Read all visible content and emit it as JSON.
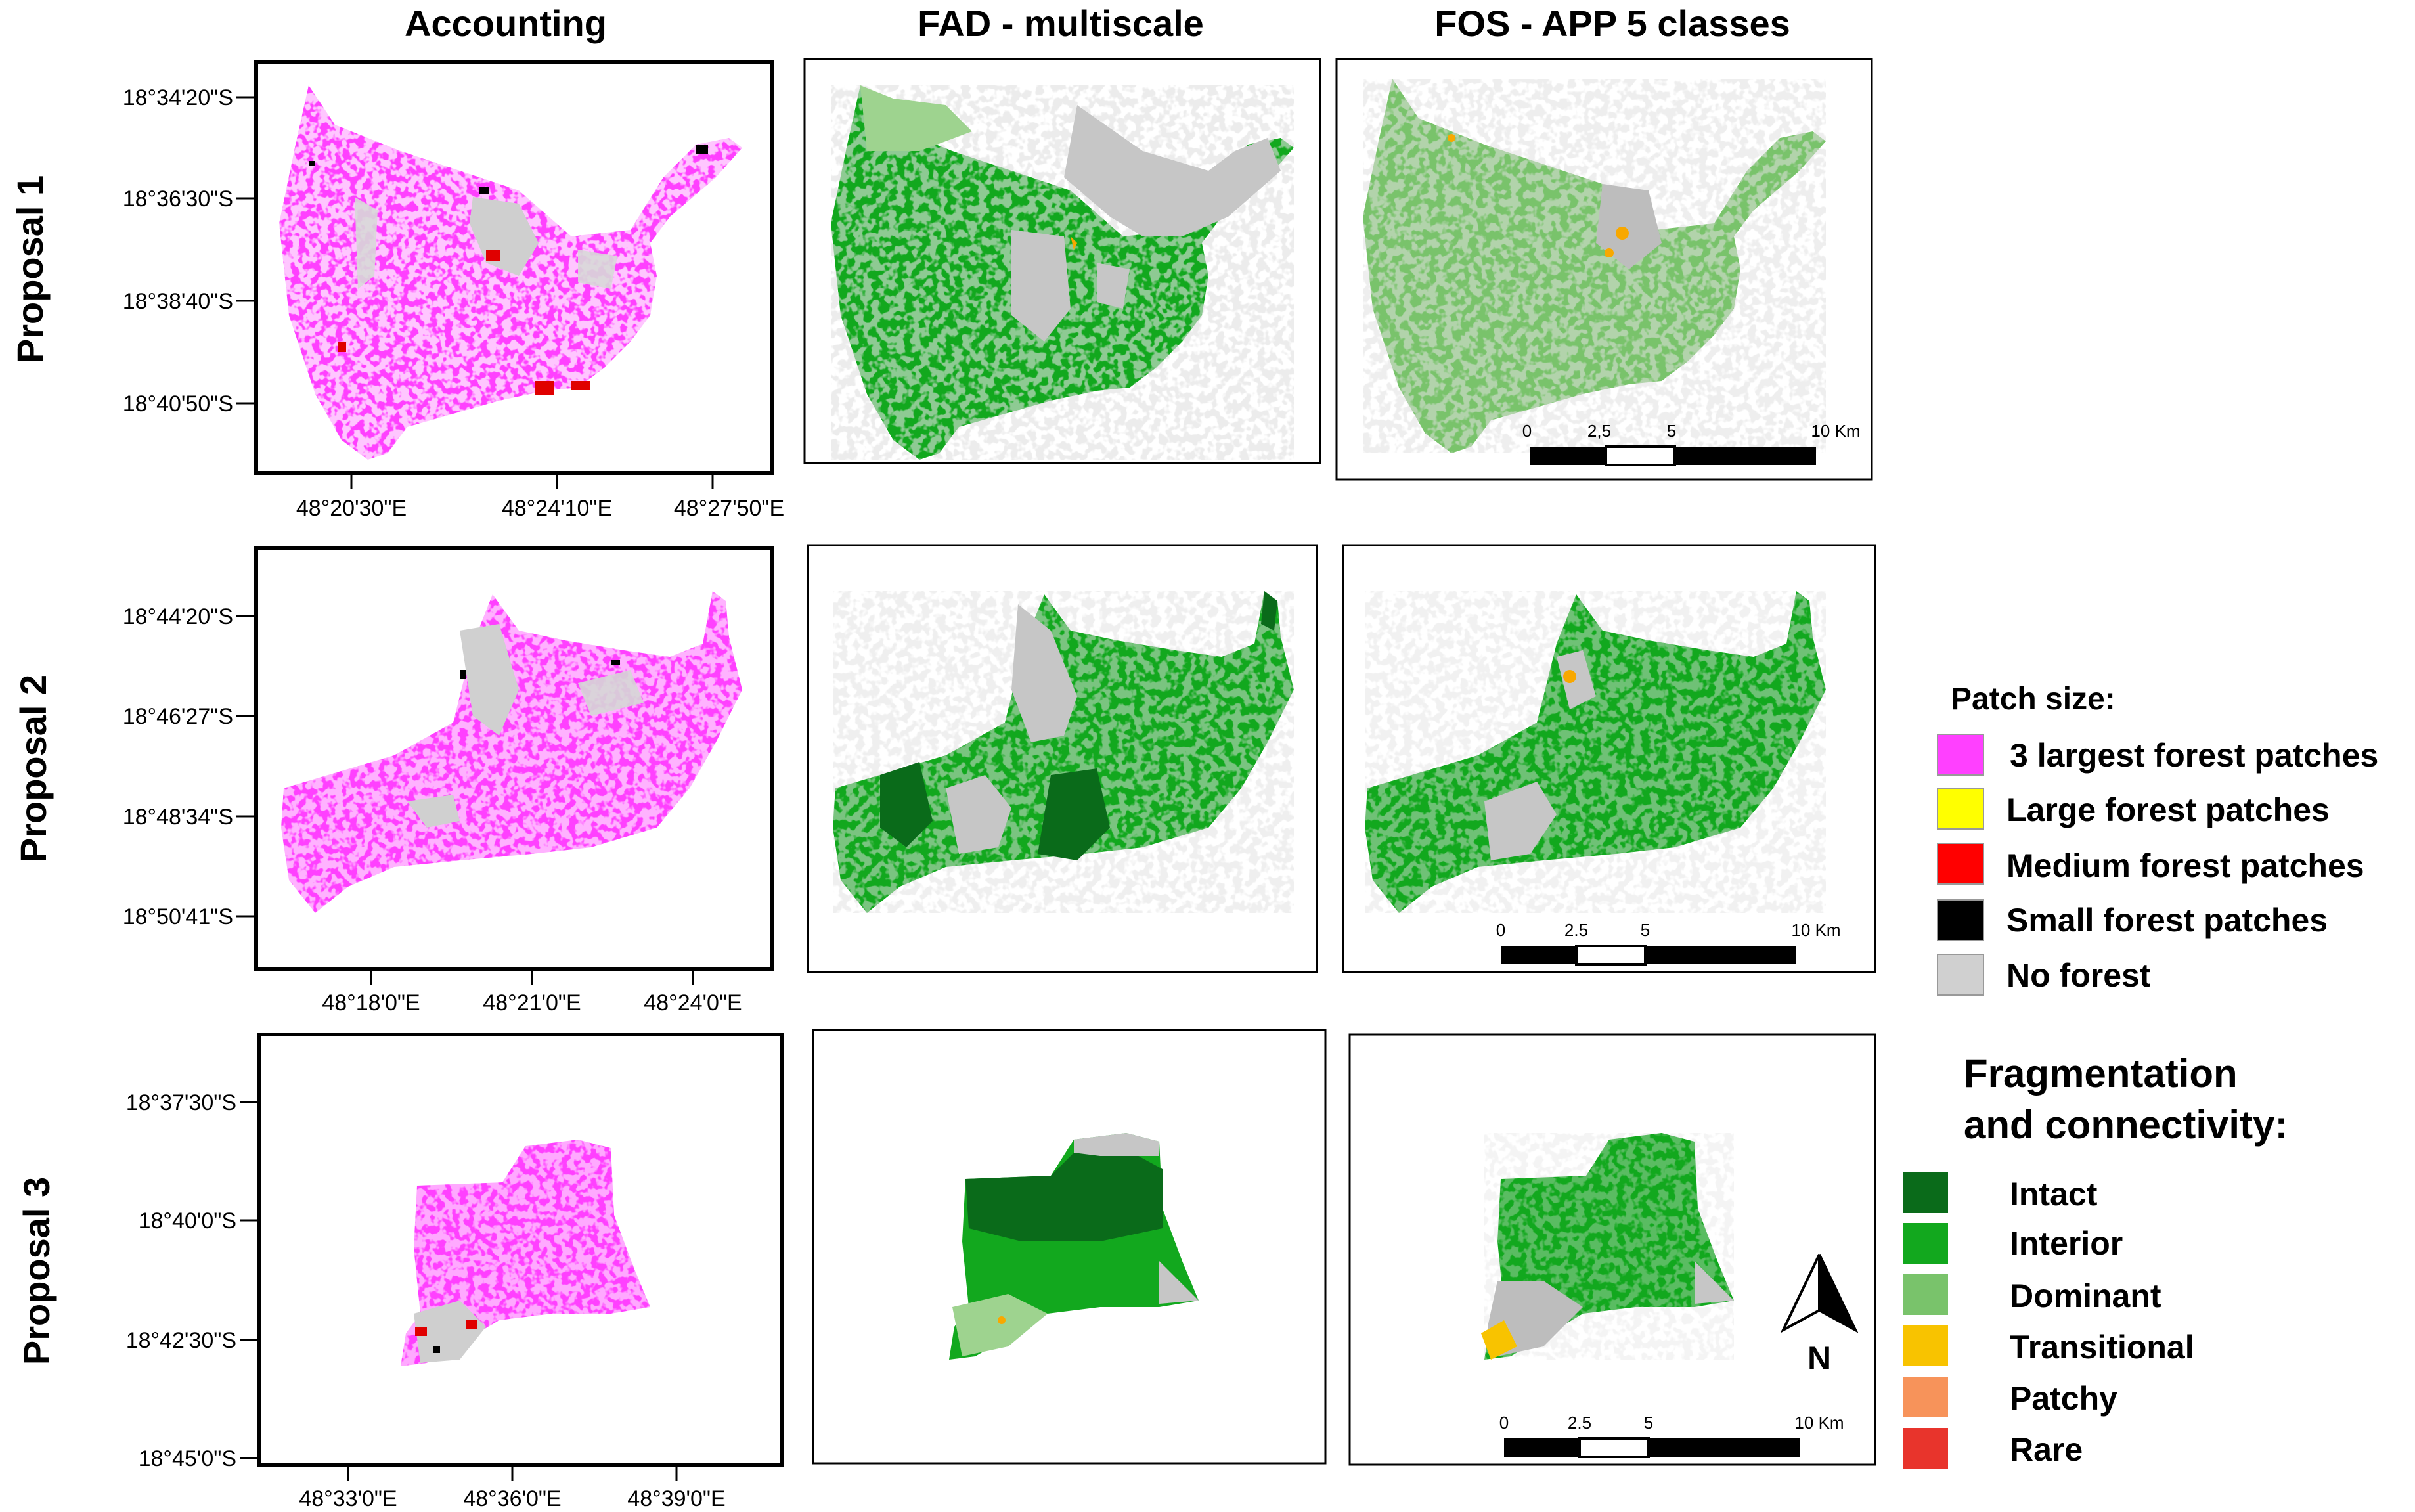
{
  "columns": [
    "Accounting",
    "FAD - multiscale",
    "FOS - APP 5 classes"
  ],
  "rows": [
    {
      "label": "Proposal 1",
      "lat_ticks": [
        "18°34'20\"S",
        "18°36'30\"S",
        "18°38'40\"S",
        "18°40'50\"S"
      ],
      "lon_ticks": [
        "48°20'30\"E",
        "48°24'10\"E",
        "48°27'50\"E"
      ]
    },
    {
      "label": "Proposal 2",
      "lat_ticks": [
        "18°44'20\"S",
        "18°46'27\"S",
        "18°48'34\"S",
        "18°50'41\"S"
      ],
      "lon_ticks": [
        "48°18'0\"E",
        "48°21'0\"E",
        "48°24'0\"E"
      ]
    },
    {
      "label": "Proposal 3",
      "lat_ticks": [
        "18°37'30\"S",
        "18°40'0\"S",
        "18°42'30\"S",
        "18°45'0\"S"
      ],
      "lon_ticks": [
        "48°33'0\"E",
        "48°36'0\"E",
        "48°39'0\"E"
      ]
    }
  ],
  "scale_bar": {
    "labels": [
      "0",
      "2,5",
      "5",
      "10 Km"
    ],
    "labels_alt": [
      "0",
      "2.5",
      "5",
      "10 Km"
    ]
  },
  "north_label": "N",
  "legend": {
    "patch_title": "Patch size:",
    "patch_items": [
      {
        "label": "3 largest forest patches",
        "color": "#ff40ff"
      },
      {
        "label": "Large forest patches",
        "color": "#ffff00"
      },
      {
        "label": "Medium forest patches",
        "color": "#ff0000"
      },
      {
        "label": "Small forest patches",
        "color": "#000000"
      },
      {
        "label": "No forest",
        "color": "#d0d0d0"
      }
    ],
    "frag_title_1": "Fragmentation",
    "frag_title_2": "and connectivity:",
    "frag_items": [
      {
        "label": "Intact",
        "color": "#0a6b1a"
      },
      {
        "label": "Interior",
        "color": "#12a81e"
      },
      {
        "label": "Dominant",
        "color": "#79c36b"
      },
      {
        "label": "Transitional",
        "color": "#f8c300"
      },
      {
        "label": "Patchy",
        "color": "#f7935a"
      },
      {
        "label": "Rare",
        "color": "#e8342c"
      }
    ]
  },
  "colors": {
    "pink": "#ff40ff",
    "gray": "#c6c6c6",
    "red": "#e00000",
    "interior": "#12a81e",
    "intact": "#0a6b1a",
    "dominant": "#79c36b",
    "orange": "#f8a800"
  }
}
